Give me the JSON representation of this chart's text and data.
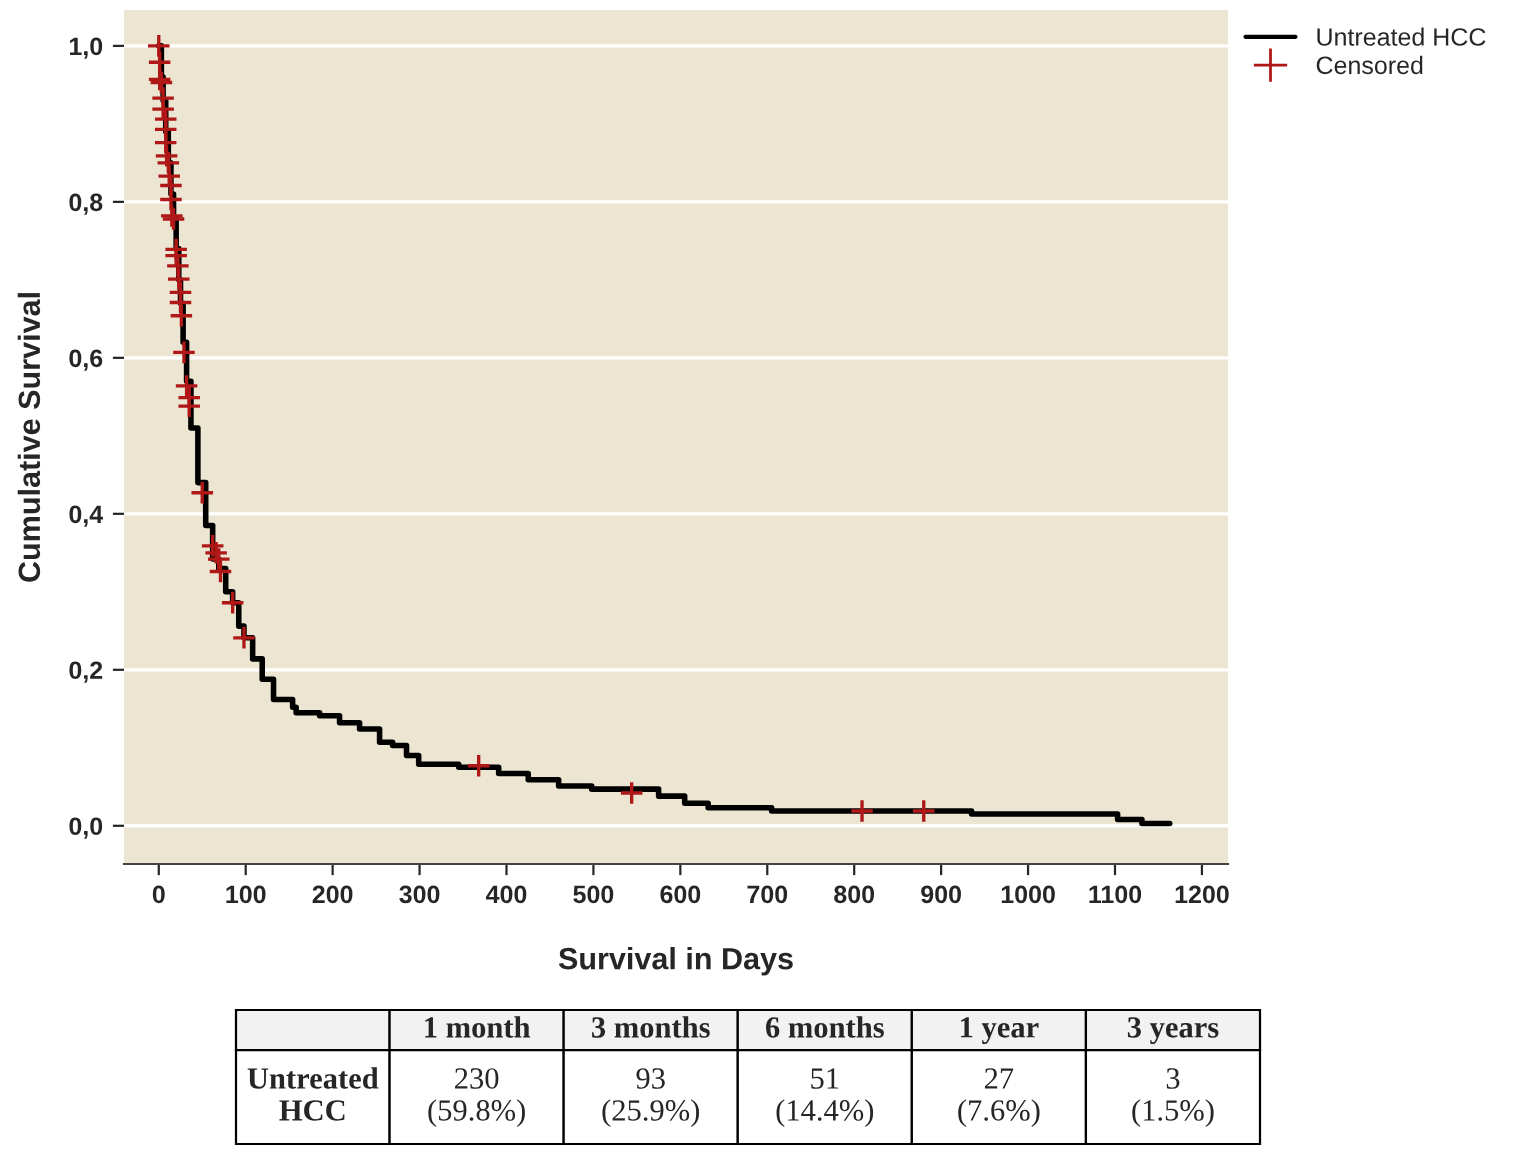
{
  "chart_data": [
    {
      "type": "step",
      "xlabel": "Survival in Days",
      "ylabel": "Cumulative Survival",
      "xlim": [
        -40,
        1230
      ],
      "xticks": [
        0,
        100,
        200,
        300,
        400,
        500,
        600,
        700,
        800,
        900,
        1000,
        1100,
        1200
      ],
      "ylim": [
        -0.049,
        1.046
      ],
      "yticks": [
        {
          "value": 0,
          "label": "0,0"
        },
        {
          "value": 0.2,
          "label": "0,2"
        },
        {
          "value": 0.4,
          "label": "0,4"
        },
        {
          "value": 0.6,
          "label": "0,6"
        },
        {
          "value": 0.8,
          "label": "0,8"
        },
        {
          "value": 1.0,
          "label": "1,0"
        }
      ],
      "grid": "y",
      "legend": "top right",
      "series": [
        {
          "name": "Untreated HCC",
          "type": "step",
          "color": "#000000",
          "line_style": "solid",
          "x": [
            0,
            3,
            5,
            8,
            11,
            14,
            17,
            20,
            23,
            25,
            28,
            32,
            37,
            45,
            54,
            62,
            69,
            77,
            85,
            92,
            98,
            108,
            119,
            132,
            154,
            158,
            185,
            208,
            231,
            254,
            269,
            285,
            299,
            345,
            391,
            425,
            460,
            498,
            575,
            605,
            632,
            705,
            935,
            1103,
            1131,
            1163
          ],
          "values": [
            1.0,
            0.96,
            0.93,
            0.89,
            0.85,
            0.81,
            0.78,
            0.74,
            0.7,
            0.67,
            0.62,
            0.57,
            0.51,
            0.44,
            0.385,
            0.342,
            0.33,
            0.3,
            0.286,
            0.256,
            0.241,
            0.214,
            0.188,
            0.162,
            0.152,
            0.145,
            0.141,
            0.132,
            0.124,
            0.107,
            0.103,
            0.09,
            0.079,
            0.075,
            0.067,
            0.059,
            0.051,
            0.047,
            0.038,
            0.029,
            0.023,
            0.019,
            0.015,
            0.008,
            0.003,
            0.003
          ]
        },
        {
          "name": "Censored",
          "type": "scatter",
          "color": "#b01818",
          "marker": "cross",
          "x": [
            0,
            1,
            1,
            3,
            5,
            5,
            8,
            8,
            8,
            9,
            11,
            12,
            14,
            14,
            15,
            17,
            20,
            20,
            22,
            23,
            25,
            25,
            26,
            29,
            32,
            35,
            35,
            50,
            62,
            66,
            69,
            71,
            85,
            98,
            368,
            544,
            809,
            880
          ],
          "values": [
            1.0,
            0.979,
            0.957,
            0.953,
            0.933,
            0.919,
            0.906,
            0.893,
            0.876,
            0.859,
            0.85,
            0.833,
            0.821,
            0.803,
            0.782,
            0.778,
            0.739,
            0.731,
            0.718,
            0.701,
            0.684,
            0.671,
            0.654,
            0.607,
            0.564,
            0.549,
            0.538,
            0.427,
            0.359,
            0.35,
            0.342,
            0.326,
            0.286,
            0.241,
            0.077,
            0.042,
            0.019,
            0.019
          ]
        }
      ]
    },
    {
      "type": "other",
      "annotations": [
        "1 month",
        "3 months",
        "6 months",
        "1 year",
        "3 years",
        "Untreated\nHCC",
        "230\n(59.8%)",
        "93\n(25.9%)",
        "51\n(14.4%)",
        "27\n(7.6%)",
        "3\n(1.5%)"
      ]
    }
  ]
}
